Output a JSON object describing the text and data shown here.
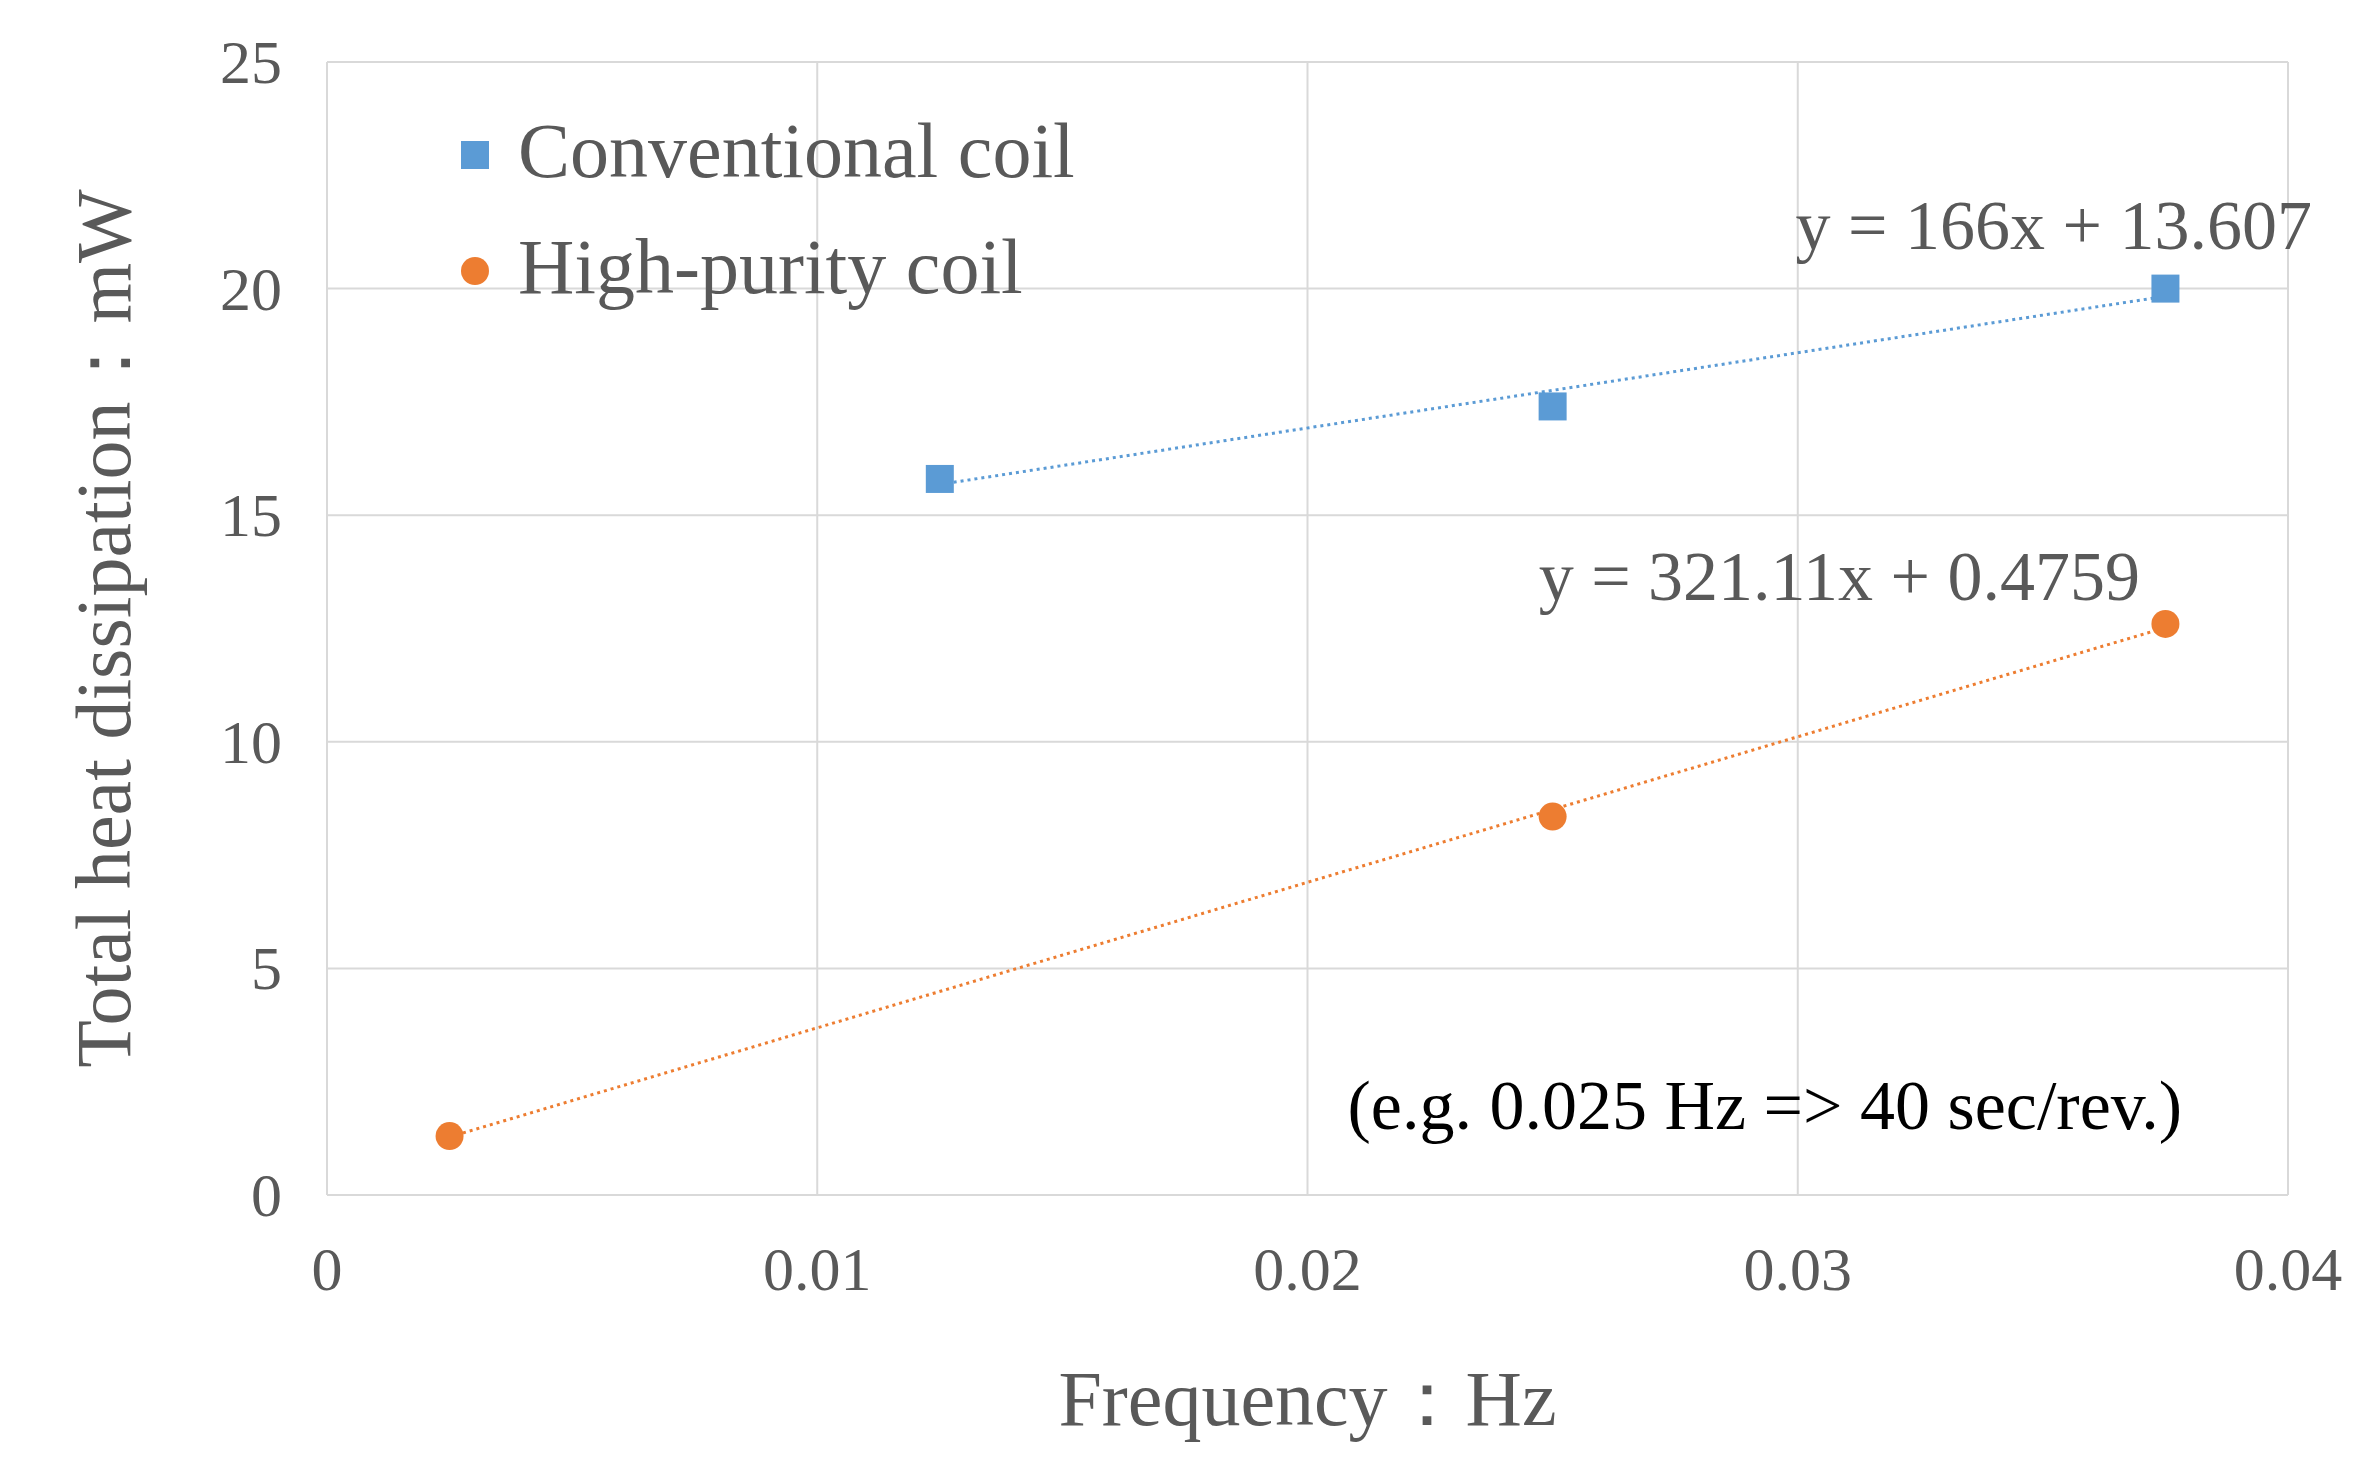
{
  "chart_data": {
    "type": "scatter",
    "xlabel": "Frequency：Hz",
    "ylabel": "Total heat dissipation：mW",
    "xlim": [
      0,
      0.04
    ],
    "xticks": [
      0,
      0.01,
      0.02,
      0.03,
      0.04
    ],
    "ylim": [
      0,
      25
    ],
    "yticks": [
      0,
      5,
      10,
      15,
      20,
      25
    ],
    "grid": true,
    "legend": "top left",
    "series": [
      {
        "name": "Conventional coil",
        "color": "#5b9bd5",
        "marker": "square",
        "x": [
          0.0125,
          0.025,
          0.0375
        ],
        "values": [
          15.8,
          17.4,
          20.0
        ]
      },
      {
        "name": "High-purity coil",
        "color": "#ed7d31",
        "marker": "circle",
        "x": [
          0.0025,
          0.025,
          0.0375
        ],
        "values": [
          1.3,
          8.35,
          12.6
        ]
      },
      {
        "type": "line",
        "color": "#5b9bd5",
        "line_style": "dotted",
        "x": [
          0.0125,
          0.0375
        ],
        "values": [
          15.68,
          19.83
        ]
      },
      {
        "type": "line",
        "color": "#ed7d31",
        "line_style": "dotted",
        "x": [
          0.0025,
          0.0375
        ],
        "values": [
          1.28,
          12.52
        ]
      }
    ],
    "annotations": [
      "y = 166x + 13.607",
      "y = 321.11x + 0.4759",
      "(e.g. 0.025 Hz => 40 sec/rev.)"
    ]
  }
}
